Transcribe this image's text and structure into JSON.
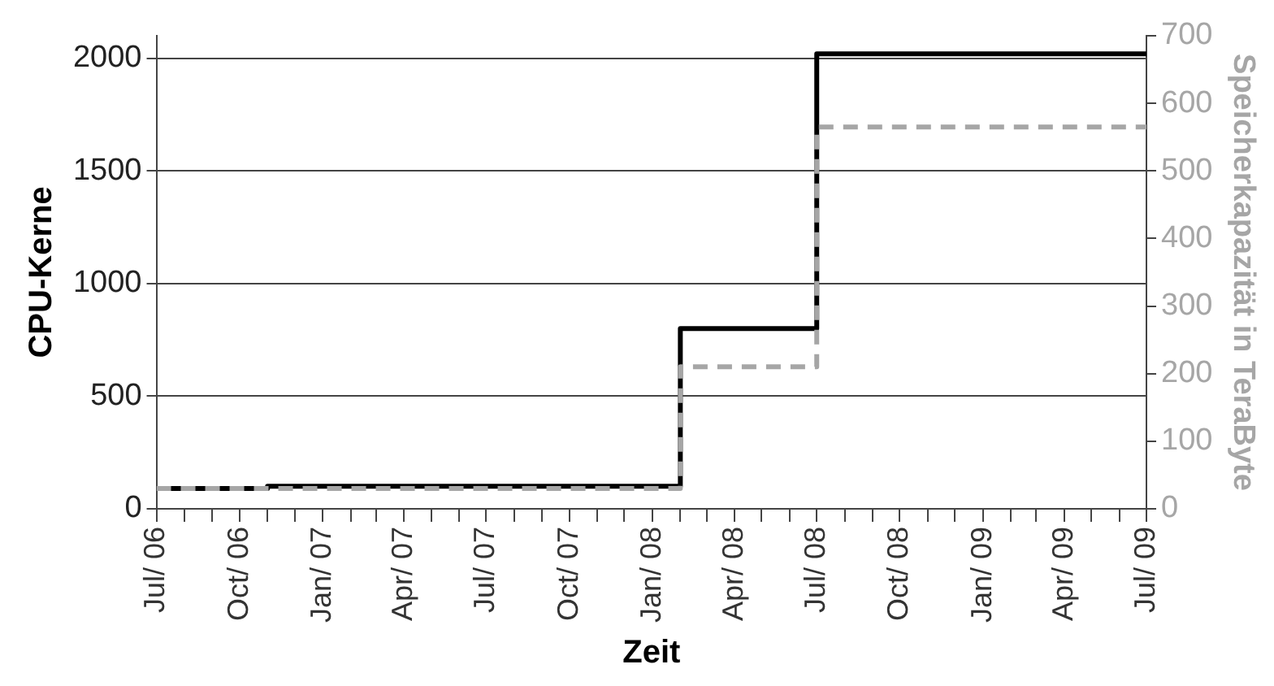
{
  "chart_data": {
    "type": "step",
    "xlabel": "Zeit",
    "ylabel": "CPU-Kerne",
    "y2label": "Speicherkapazität in TeraByte",
    "xlim": [
      "2006-07",
      "2009-07"
    ],
    "xticks": [
      {
        "value": "2006-07",
        "label": "Jul/ 06"
      },
      {
        "value": "2006-08",
        "label": null
      },
      {
        "value": "2006-09",
        "label": null
      },
      {
        "value": "2006-10",
        "label": "Oct/ 06"
      },
      {
        "value": "2006-11",
        "label": null
      },
      {
        "value": "2006-12",
        "label": null
      },
      {
        "value": "2007-01",
        "label": "Jan/ 07"
      },
      {
        "value": "2007-02",
        "label": null
      },
      {
        "value": "2007-03",
        "label": null
      },
      {
        "value": "2007-04",
        "label": "Apr/ 07"
      },
      {
        "value": "2007-05",
        "label": null
      },
      {
        "value": "2007-06",
        "label": null
      },
      {
        "value": "2007-07",
        "label": "Jul/ 07"
      },
      {
        "value": "2007-08",
        "label": null
      },
      {
        "value": "2007-09",
        "label": null
      },
      {
        "value": "2007-10",
        "label": "Oct/ 07"
      },
      {
        "value": "2007-11",
        "label": null
      },
      {
        "value": "2007-12",
        "label": null
      },
      {
        "value": "2008-01",
        "label": "Jan/ 08"
      },
      {
        "value": "2008-02",
        "label": null
      },
      {
        "value": "2008-03",
        "label": null
      },
      {
        "value": "2008-04",
        "label": "Apr/ 08"
      },
      {
        "value": "2008-05",
        "label": null
      },
      {
        "value": "2008-06",
        "label": null
      },
      {
        "value": "2008-07",
        "label": "Jul/ 08"
      },
      {
        "value": "2008-08",
        "label": null
      },
      {
        "value": "2008-09",
        "label": null
      },
      {
        "value": "2008-10",
        "label": "Oct/ 08"
      },
      {
        "value": "2008-11",
        "label": null
      },
      {
        "value": "2008-12",
        "label": null
      },
      {
        "value": "2009-01",
        "label": "Jan/ 09"
      },
      {
        "value": "2009-02",
        "label": null
      },
      {
        "value": "2009-03",
        "label": null
      },
      {
        "value": "2009-04",
        "label": "Apr/ 09"
      },
      {
        "value": "2009-05",
        "label": null
      },
      {
        "value": "2009-06",
        "label": null
      },
      {
        "value": "2009-07",
        "label": "Jul/ 09"
      }
    ],
    "ylim": [
      0,
      2100
    ],
    "yticks": [
      0,
      500,
      1000,
      1500,
      2000
    ],
    "y2lim": [
      0,
      700
    ],
    "y2ticks": [
      0,
      100,
      200,
      300,
      400,
      500,
      600,
      700
    ],
    "grid": "y",
    "legend": false,
    "marker": "none",
    "series": [
      {
        "color": "#000000",
        "line_style": "solid",
        "x": [
          "2006-07",
          "2006-11",
          "2008-02",
          "2008-07",
          "2009-07"
        ],
        "values": [
          90,
          100,
          800,
          2020,
          2020
        ]
      },
      {
        "color": "#a6a6a6",
        "line_style": "dashed",
        "axis": "y2",
        "x": [
          "2006-07",
          "2008-02",
          "2008-07",
          "2009-07"
        ],
        "values": [
          30,
          210,
          565,
          565
        ]
      }
    ]
  }
}
